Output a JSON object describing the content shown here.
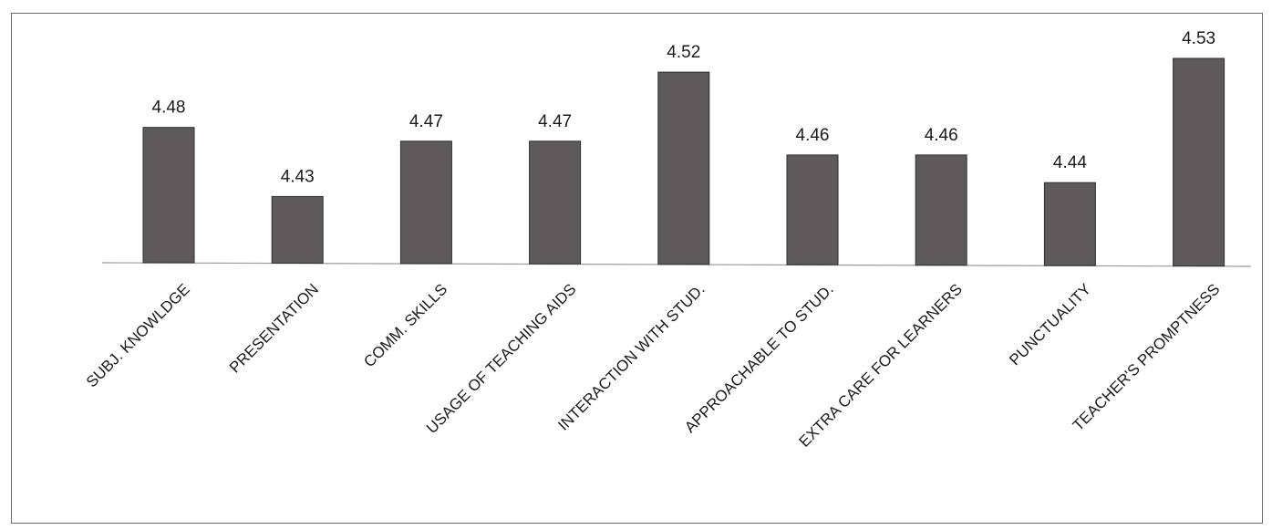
{
  "chart_data": {
    "type": "bar",
    "title": "",
    "xlabel": "",
    "ylabel": "",
    "categories": [
      "SUBJ. KNOWLDGE",
      "PRESENTATION",
      "COMM. SKILLS",
      "USAGE OF TEACHING AIDS",
      "INTERACTION WITH STUD.",
      "APPROACHABLE TO STUD.",
      "EXTRA CARE FOR LEARNERS",
      "PUNCTUALITY",
      "TEACHER'S PROMPTNESS"
    ],
    "values": [
      4.48,
      4.43,
      4.47,
      4.47,
      4.52,
      4.46,
      4.46,
      4.44,
      4.53
    ],
    "value_labels": [
      "4.48",
      "4.43",
      "4.47",
      "4.47",
      "4.52",
      "4.46",
      "4.46",
      "4.44",
      "4.53"
    ],
    "ylim": [
      4.382,
      4.53
    ],
    "grid": false,
    "legend": "none",
    "bar_color": "#5e5a5c"
  }
}
